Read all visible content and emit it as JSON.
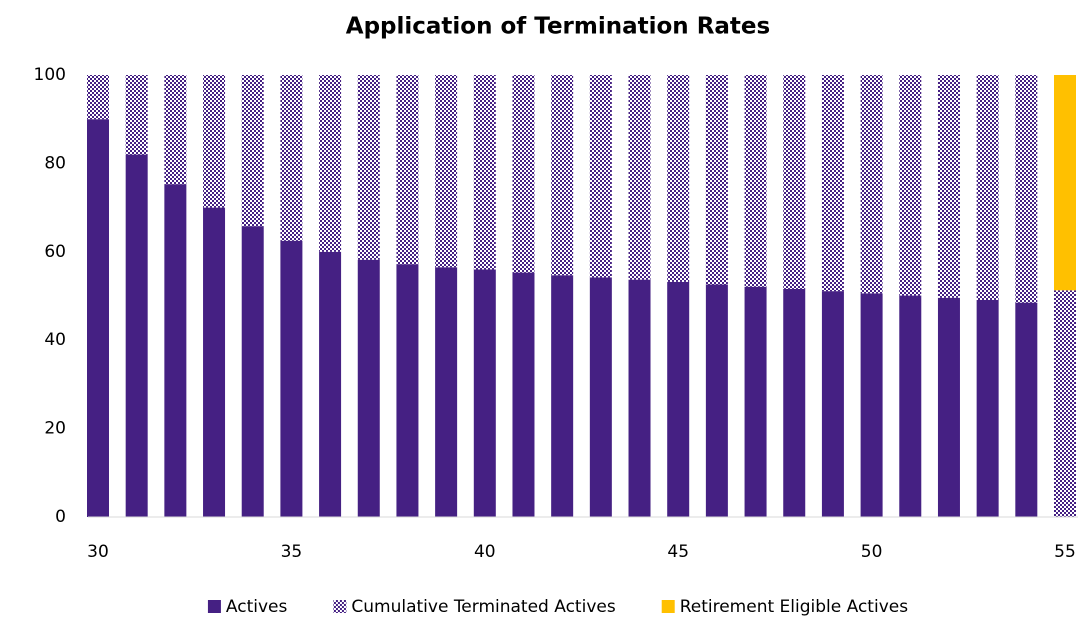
{
  "chart_data": {
    "type": "stacked_bar",
    "title": "Application of Termination Rates",
    "categories": [
      30,
      null,
      null,
      null,
      null,
      35,
      null,
      null,
      null,
      null,
      40,
      null,
      null,
      null,
      null,
      45,
      null,
      null,
      null,
      null,
      50,
      null,
      null,
      null,
      null,
      55
    ],
    "series": [
      {
        "name": "Actives",
        "color": "#452083",
        "pattern": "none",
        "values": [
          90,
          82,
          75.3,
          70,
          65.8,
          62.5,
          60,
          58.2,
          57.2,
          56.5,
          56,
          55.3,
          54.7,
          54.2,
          53.7,
          53.2,
          52.6,
          52.1,
          51.6,
          51.1,
          50.6,
          50.1,
          49.6,
          49.1,
          48.5,
          0
        ]
      },
      {
        "name": "Cumulative Terminated Actives",
        "color": "#452083",
        "pattern": "checker",
        "values": [
          10,
          18,
          24.7,
          30,
          34.2,
          37.5,
          40,
          41.8,
          42.8,
          43.5,
          44,
          44.7,
          45.3,
          45.8,
          46.3,
          46.8,
          47.4,
          47.9,
          48.4,
          48.9,
          49.4,
          49.9,
          50.4,
          50.9,
          51.5,
          51.3
        ]
      },
      {
        "name": "Retirement Eligible Actives",
        "color": "#ffc000",
        "pattern": "none",
        "values": [
          0,
          0,
          0,
          0,
          0,
          0,
          0,
          0,
          0,
          0,
          0,
          0,
          0,
          0,
          0,
          0,
          0,
          0,
          0,
          0,
          0,
          0,
          0,
          0,
          0,
          48.7
        ]
      }
    ],
    "ylim": [
      0,
      100
    ],
    "yticks": [
      0,
      20,
      40,
      60,
      80,
      100
    ],
    "grid": false,
    "legend": "bottom"
  }
}
